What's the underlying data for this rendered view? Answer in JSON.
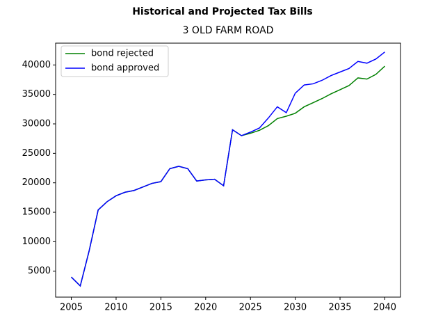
{
  "chart_data": {
    "type": "line",
    "title": "Historical and Projected Tax Bills",
    "subtitle": "3 OLD FARM ROAD",
    "x": [
      2005,
      2006,
      2007,
      2008,
      2009,
      2010,
      2011,
      2012,
      2013,
      2014,
      2015,
      2016,
      2017,
      2018,
      2019,
      2020,
      2021,
      2022,
      2023,
      2024,
      2025,
      2026,
      2027,
      2028,
      2029,
      2030,
      2031,
      2032,
      2033,
      2034,
      2035,
      2036,
      2037,
      2038,
      2039,
      2040
    ],
    "series": [
      {
        "name": "bond rejected",
        "color": "#008000",
        "values": [
          4000,
          2500,
          8500,
          15400,
          16800,
          17800,
          18400,
          18700,
          19300,
          19900,
          20200,
          22400,
          22800,
          22400,
          20300,
          20500,
          20600,
          19500,
          29000,
          28000,
          28400,
          28900,
          29700,
          30900,
          31300,
          31800,
          32900,
          33600,
          34300,
          35100,
          35800,
          36500,
          37800,
          37600,
          38400,
          39800
        ]
      },
      {
        "name": "bond approved",
        "color": "#0000ff",
        "values": [
          4000,
          2500,
          8500,
          15400,
          16800,
          17800,
          18400,
          18700,
          19300,
          19900,
          20200,
          22400,
          22800,
          22400,
          20300,
          20500,
          20600,
          19500,
          29000,
          28000,
          28600,
          29300,
          31000,
          32900,
          31900,
          35200,
          36600,
          36800,
          37400,
          38200,
          38800,
          39400,
          40600,
          40300,
          41000,
          42200
        ]
      }
    ],
    "xlim": [
      2003.25,
      2041.75
    ],
    "ylim": [
      600,
      43700
    ],
    "xticks": [
      2005,
      2010,
      2015,
      2020,
      2025,
      2030,
      2035,
      2040
    ],
    "yticks": [
      5000,
      10000,
      15000,
      20000,
      25000,
      30000,
      35000,
      40000
    ],
    "legend": "upper left",
    "grid": false
  }
}
